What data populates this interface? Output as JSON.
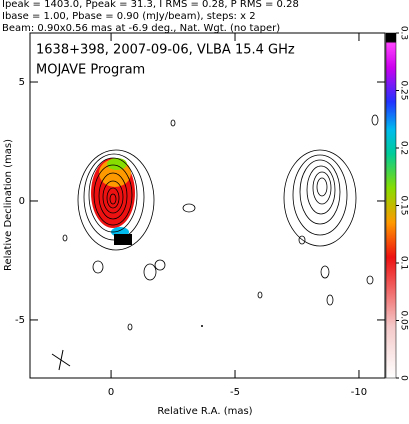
{
  "chart_data": {
    "type": "contour",
    "header": [
      "Ipeak = 1403.0, Ppeak = 31.3, I RMS = 0.28, P RMS = 0.28",
      "Ibase = 1.00, Pbase = 0.90 (mJy/beam), steps: x 2",
      "Beam: 0.90x0.56 mas at -6.9 deg., Nat. Wgt. (no taper)"
    ],
    "title": "1638+398, 2007-09-06, VLBA 15.4 GHz",
    "subtitle": "MOJAVE Program",
    "x_label": "Relative R.A. (mas)",
    "y_label": "Relative Declination (mas)",
    "xlim": [
      3.27,
      -11.05
    ],
    "xticks": [
      0,
      -5,
      -10
    ],
    "ylim": [
      -7.44,
      7.06
    ],
    "yticks": [
      5,
      0,
      -5
    ],
    "clim": [
      0,
      0.3
    ],
    "cticks": [
      0,
      0.05,
      0.1,
      0.15,
      0.2,
      0.25,
      0.3
    ]
  }
}
